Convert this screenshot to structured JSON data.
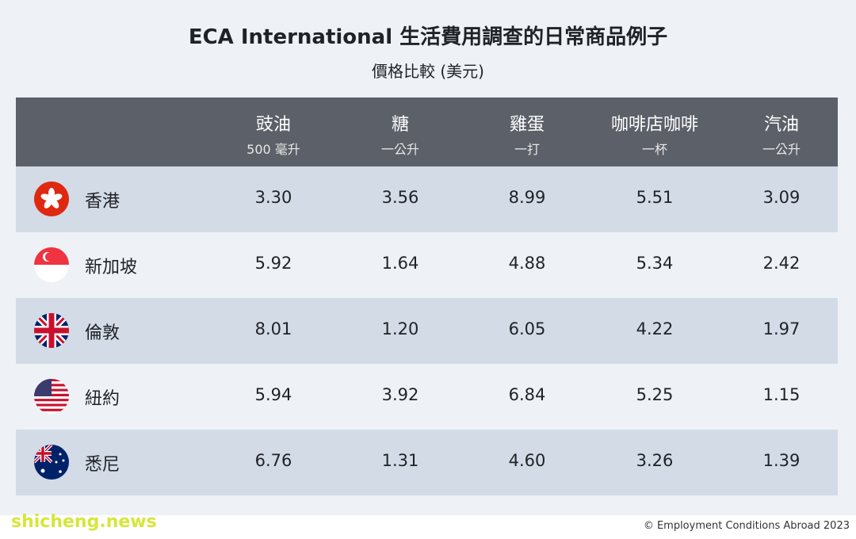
{
  "header": {
    "title": "ECA International 生活費用調查的日常商品例子",
    "subtitle": "價格比較 (美元)"
  },
  "table": {
    "columns": [
      {
        "name": "豉油",
        "unit": "500 毫升"
      },
      {
        "name": "糖",
        "unit": "一公升"
      },
      {
        "name": "雞蛋",
        "unit": "一打"
      },
      {
        "name": "咖啡店咖啡",
        "unit": "一杯"
      },
      {
        "name": "汽油",
        "unit": "一公升"
      }
    ],
    "rows": [
      {
        "city": "香港",
        "values": [
          "3.30",
          "3.56",
          "8.99",
          "5.51",
          "3.09"
        ]
      },
      {
        "city": "新加坡",
        "values": [
          "5.92",
          "1.64",
          "4.88",
          "5.34",
          "2.42"
        ]
      },
      {
        "city": "倫敦",
        "values": [
          "8.01",
          "1.20",
          "6.05",
          "4.22",
          "1.97"
        ]
      },
      {
        "city": "紐約",
        "values": [
          "5.94",
          "3.92",
          "6.84",
          "5.25",
          "1.15"
        ]
      },
      {
        "city": "悉尼",
        "values": [
          "6.76",
          "1.31",
          "4.60",
          "3.26",
          "1.39"
        ]
      }
    ]
  },
  "footer": {
    "watermark": "shicheng.news",
    "credit": "© Employment Conditions Abroad 2023"
  }
}
